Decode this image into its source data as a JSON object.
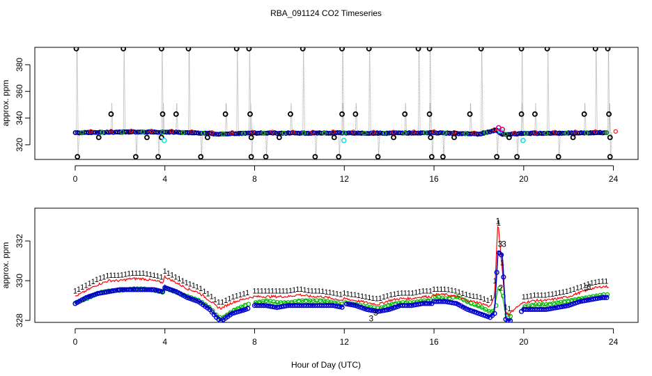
{
  "chart_data": {
    "title": "RBA_091124  CO2 Timeseries",
    "xlabel": "Hour of Day (UTC)",
    "colors": {
      "axis": "#000000",
      "raw_line": "#9a9a9a",
      "raw_points": "#000000",
      "series1": "#ff0000",
      "series2": "#00bb00",
      "series3": "#0000cc",
      "cyan_points": "#33dddd",
      "magenta_points": "#cc0077"
    },
    "panels": [
      {
        "name": "raw",
        "type": "line",
        "ylabel": "approx. ppm",
        "xlim": [
          -1.8,
          25.1
        ],
        "ylim": [
          309,
          393
        ],
        "xticks": [
          0,
          4,
          8,
          12,
          16,
          20,
          24
        ],
        "yticks": [
          320,
          340,
          360,
          380
        ],
        "baseline": {
          "x": [
            0,
            1,
            2,
            3,
            3.8,
            4,
            5,
            6,
            6.4,
            7,
            7.8,
            8,
            9,
            10,
            11,
            12,
            13,
            14,
            15,
            16,
            17,
            17.5,
            18,
            18.8,
            19,
            19.4,
            20,
            21,
            22,
            23,
            23.8
          ],
          "y": [
            329.1,
            329.3,
            329.5,
            329.6,
            329.4,
            329.6,
            329.1,
            328.6,
            327.8,
            328.4,
            328.6,
            328.8,
            328.8,
            328.7,
            328.8,
            329.0,
            328.7,
            328.7,
            328.9,
            329.0,
            328.5,
            328.2,
            328.0,
            331.0,
            328.0,
            327.8,
            328.6,
            328.6,
            328.8,
            329.0,
            329.2
          ]
        },
        "spike_hours": [
          0.05,
          2.15,
          3.85,
          5.05,
          7.2,
          7.75,
          10.15,
          11.9,
          13.1,
          15.3,
          15.8,
          18.1,
          19.9,
          21.05,
          23.2,
          23.75
        ],
        "spike_top": 392,
        "dip_hours": [
          0.1,
          2.7,
          3.7,
          5.6,
          7.85,
          8.5,
          10.7,
          11.75,
          13.5,
          15.9,
          16.4,
          18.8,
          19.7,
          21.55,
          23.85
        ],
        "dip_bottom": 311,
        "mid_hours": [
          1.6,
          3.9,
          4.5,
          6.7,
          7.8,
          9.6,
          11.9,
          12.5,
          14.7,
          15.8,
          17.6,
          19.9,
          20.5,
          22.7,
          23.8
        ],
        "mid_value": 343,
        "low_hours": [
          1.05,
          3.2,
          3.85,
          5.9,
          7.85,
          9.1,
          11.55,
          14.2,
          15.85,
          16.9,
          19.35,
          22.2,
          23.85
        ],
        "low_value": 325.5,
        "cyan_points": [
          [
            3.97,
            323.2
          ],
          [
            11.98,
            323.2
          ],
          [
            19.97,
            323.2
          ],
          [
            18.95,
            330.5
          ]
        ],
        "magenta_points": [
          [
            18.88,
            332.8
          ],
          [
            19.05,
            331.5
          ]
        ]
      },
      {
        "name": "averaged",
        "type": "line",
        "ylabel": "approx. ppm",
        "xlim": [
          -1.8,
          25.1
        ],
        "ylim": [
          327.9,
          333.65
        ],
        "xticks": [
          0,
          4,
          8,
          12,
          16,
          20,
          24
        ],
        "yticks": [
          328,
          330,
          332
        ],
        "series": [
          {
            "name": "1",
            "hours": [
              0,
              0.5,
              1,
              1.5,
              2,
              2.5,
              3,
              3.5,
              3.9,
              4,
              4.5,
              5,
              5.5,
              6,
              6.3,
              6.5,
              7,
              7.6,
              8,
              8.5,
              9,
              9.5,
              10,
              10.5,
              11,
              11.5,
              11.95,
              12,
              12.5,
              13,
              13.5,
              14,
              14.5,
              15,
              15.5,
              15.9,
              16,
              16.5,
              17,
              17.5,
              18,
              18.5,
              18.7,
              18.85,
              19.05,
              19.2,
              19.35,
              19.6,
              20,
              20.5,
              21,
              21.5,
              22,
              22.5,
              23,
              23.5,
              23.8
            ],
            "values": [
              329.2,
              329.5,
              329.8,
              330.0,
              330.0,
              330.1,
              330.1,
              330.0,
              329.9,
              330.2,
              329.9,
              329.6,
              329.4,
              329.0,
              328.7,
              328.6,
              328.9,
              329.1,
              329.2,
              329.2,
              329.2,
              329.2,
              329.3,
              329.2,
              329.2,
              329.1,
              329.0,
              329.1,
              329.0,
              328.9,
              328.8,
              329.0,
              329.1,
              329.1,
              329.2,
              329.2,
              329.3,
              329.3,
              329.2,
              329.0,
              328.9,
              328.7,
              329.2,
              333.0,
              330.5,
              328.4,
              328.3,
              328.6,
              328.9,
              329.0,
              329.0,
              329.1,
              329.2,
              329.4,
              329.6,
              329.7,
              329.7
            ]
          },
          {
            "name": "2",
            "hours": [
              0,
              0.5,
              1,
              1.5,
              2,
              2.5,
              3,
              3.5,
              3.9,
              4,
              4.5,
              5,
              5.5,
              6,
              6.3,
              6.5,
              7,
              7.6,
              8,
              8.5,
              9,
              9.5,
              10,
              10.5,
              11,
              11.5,
              11.95,
              12,
              12.5,
              13,
              13.5,
              14,
              14.5,
              15,
              15.5,
              15.9,
              16,
              16.5,
              17,
              17.5,
              18,
              18.5,
              18.7,
              18.85,
              19.05,
              19.2,
              19.35,
              19.6,
              20,
              20.5,
              21,
              21.5,
              22,
              22.5,
              23,
              23.5,
              23.8
            ],
            "values": [
              328.9,
              329.1,
              329.4,
              329.5,
              329.5,
              329.6,
              329.6,
              329.5,
              329.4,
              329.6,
              329.4,
              329.2,
              329.0,
              328.6,
              328.2,
              328.1,
              328.5,
              328.8,
              328.9,
              329.0,
              328.9,
              328.9,
              329.0,
              329.0,
              329.0,
              328.9,
              328.8,
              328.9,
              328.8,
              328.7,
              328.6,
              328.8,
              328.9,
              328.9,
              329.0,
              329.0,
              329.2,
              329.1,
              329.2,
              328.9,
              328.7,
              328.4,
              328.6,
              329.7,
              329.2,
              328.3,
              328.2,
              328.4,
              328.7,
              328.8,
              328.8,
              328.9,
              329.0,
              329.1,
              329.2,
              329.3,
              329.3
            ]
          },
          {
            "name": "3",
            "hours": [
              0,
              0.5,
              1,
              1.5,
              2,
              2.5,
              3,
              3.5,
              3.9,
              4,
              4.5,
              5,
              5.5,
              6,
              6.3,
              6.5,
              7,
              7.6,
              8,
              8.5,
              9,
              9.5,
              10,
              10.5,
              11,
              11.5,
              11.95,
              12,
              12.5,
              13,
              13.5,
              14,
              14.5,
              15,
              15.5,
              15.9,
              16,
              16.5,
              17,
              17.5,
              18,
              18.5,
              18.7,
              18.85,
              19.05,
              19.2,
              19.35,
              19.6,
              20,
              20.5,
              21,
              21.5,
              22,
              22.5,
              23,
              23.5,
              23.8
            ],
            "values": [
              328.9,
              329.2,
              329.4,
              329.5,
              329.6,
              329.6,
              329.6,
              329.6,
              329.5,
              329.7,
              329.5,
              329.2,
              329.0,
              328.6,
              328.2,
              328.0,
              328.4,
              328.6,
              328.8,
              328.8,
              328.7,
              328.8,
              328.8,
              328.8,
              328.8,
              328.8,
              328.7,
              328.9,
              328.8,
              328.6,
              328.5,
              328.6,
              328.8,
              328.8,
              328.9,
              328.9,
              329.0,
              329.0,
              328.9,
              328.6,
              328.4,
              328.2,
              328.4,
              331.5,
              331.3,
              328.1,
              328.0,
              328.2,
              328.6,
              328.6,
              328.6,
              328.7,
              328.8,
              329.0,
              329.1,
              329.2,
              329.2
            ]
          }
        ],
        "outlier_labels": [
          {
            "series": "3",
            "hour": 13.2,
            "value": 327.95
          },
          {
            "series": "3",
            "hour": 13.4,
            "value": 328.25
          },
          {
            "series": "3",
            "hour": 22.8,
            "value": 329.5
          },
          {
            "series": "1",
            "hour": 22.95,
            "value": 329.55
          }
        ]
      }
    ]
  }
}
